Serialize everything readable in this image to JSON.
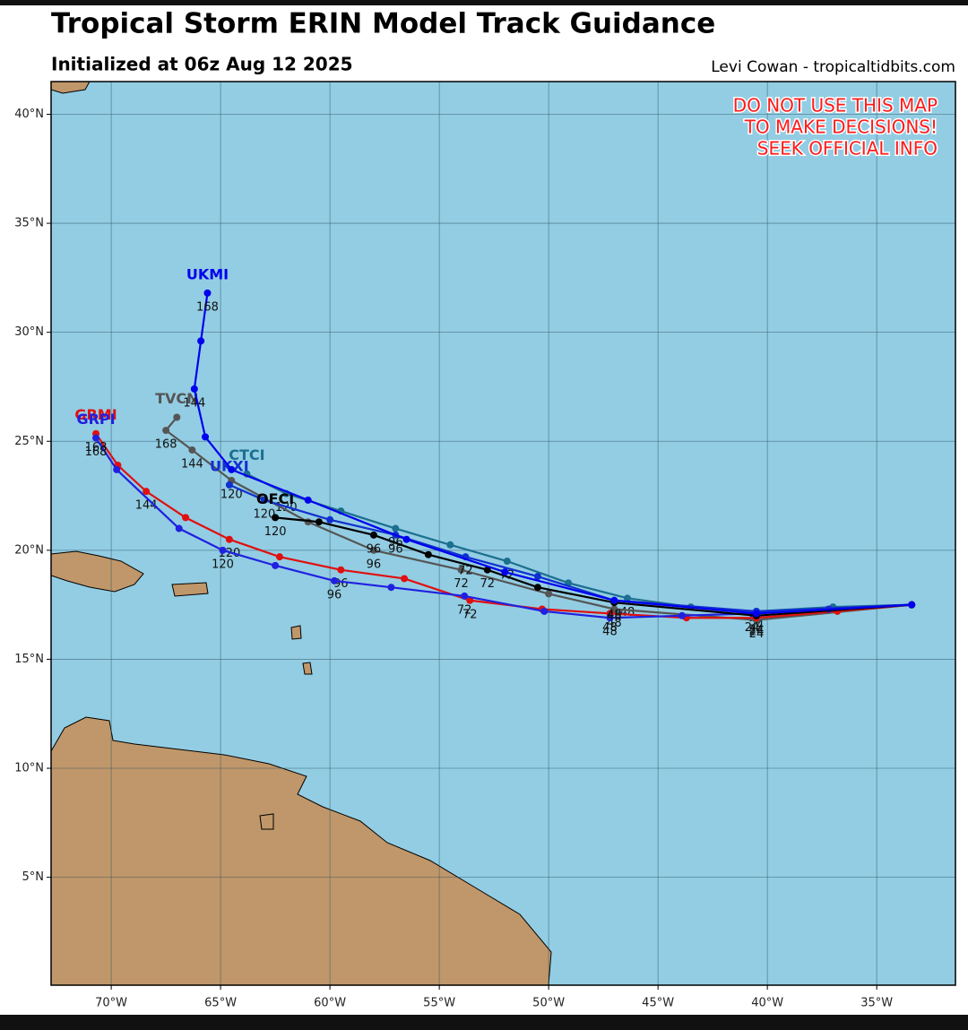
{
  "header": {
    "title": "Tropical Storm ERIN Model Track Guidance",
    "subtitle": "Initialized at 06z Aug 12 2025",
    "credit": "Levi Cowan - tropicaltidbits.com"
  },
  "warning": [
    "DO NOT USE THIS MAP",
    "TO MAKE DECISIONS!",
    "SEEK OFFICIAL INFO"
  ],
  "map": {
    "lon_range": [
      -72.75,
      -31.4
    ],
    "lat_range": [
      0.05,
      41.5
    ],
    "lon_ticks": [
      {
        "value": -70,
        "label": "70°W"
      },
      {
        "value": -65,
        "label": "65°W"
      },
      {
        "value": -60,
        "label": "60°W"
      },
      {
        "value": -55,
        "label": "55°W"
      },
      {
        "value": -50,
        "label": "50°W"
      },
      {
        "value": -45,
        "label": "45°W"
      },
      {
        "value": -40,
        "label": "40°W"
      },
      {
        "value": -35,
        "label": "35°W"
      }
    ],
    "lat_ticks": [
      {
        "value": 40,
        "label": "40°N"
      },
      {
        "value": 35,
        "label": "35°N"
      },
      {
        "value": 30,
        "label": "30°N"
      },
      {
        "value": 25,
        "label": "25°N"
      },
      {
        "value": 20,
        "label": "20°N"
      },
      {
        "value": 15,
        "label": "15°N"
      },
      {
        "value": 10,
        "label": "10°N"
      },
      {
        "value": 5,
        "label": "5°N"
      }
    ],
    "tracks": [
      {
        "name": "CTCI",
        "color": "#1b6f8f",
        "lon": [
          -33.4,
          -37.0,
          -40.5,
          -43.5,
          -46.4,
          -49.1,
          -51.9,
          -54.5,
          -57.0,
          -59.5,
          -62.0,
          -63.8
        ],
        "lat": [
          17.5,
          17.4,
          17.2,
          17.4,
          17.8,
          18.5,
          19.5,
          20.25,
          21.0,
          21.8,
          22.6,
          23.5
        ],
        "hours": [
          null,
          null,
          "24",
          null,
          "48",
          null,
          "72",
          null,
          "96",
          null,
          "120",
          null
        ]
      },
      {
        "name": "TVCN",
        "color": "#555555",
        "lon": [
          -33.4,
          -40.5,
          -47.0,
          -50.0,
          -54.0,
          -58.0,
          -61.0,
          -64.5,
          -66.3,
          -67.5,
          -67.0
        ],
        "lat": [
          17.5,
          16.8,
          17.3,
          18.0,
          19.1,
          20.0,
          21.3,
          23.2,
          24.6,
          25.5,
          26.1
        ],
        "hours": [
          null,
          "24",
          "48",
          null,
          "72",
          "96",
          null,
          "120",
          "144",
          "168",
          null
        ]
      },
      {
        "name": "GRMI",
        "color": "#e01010",
        "lon": [
          -33.4,
          -36.8,
          -40.5,
          -43.7,
          -47.2,
          -50.3,
          -53.6,
          -56.6,
          -59.5,
          -62.3,
          -64.6,
          -66.6,
          -68.4,
          -69.7,
          -70.7
        ],
        "lat": [
          17.5,
          17.2,
          16.9,
          16.9,
          17.1,
          17.3,
          17.7,
          18.7,
          19.1,
          19.7,
          20.5,
          21.5,
          22.7,
          23.9,
          25.35
        ],
        "hours": [
          null,
          null,
          "24",
          null,
          "48",
          null,
          "72",
          null,
          "96",
          null,
          "120",
          null,
          "144",
          null,
          "168"
        ]
      },
      {
        "name": "GRPI",
        "color": "#2020e0",
        "lon": [
          -33.4,
          -37.2,
          -40.7,
          -43.9,
          -47.2,
          -50.2,
          -53.85,
          -57.2,
          -59.8,
          -62.5,
          -64.9,
          -66.9,
          -69.75,
          -70.7
        ],
        "lat": [
          17.5,
          17.3,
          17.1,
          17.0,
          16.9,
          17.2,
          17.9,
          18.3,
          18.6,
          19.3,
          20.0,
          21.0,
          23.7,
          25.15
        ],
        "hours": [
          null,
          null,
          "24",
          null,
          "48",
          null,
          "72",
          null,
          "96",
          null,
          "120",
          null,
          null,
          "168"
        ]
      },
      {
        "name": "UKXI",
        "color": "#1030d0",
        "lon": [
          -33.4,
          -40.5,
          -47.0,
          -50.5,
          -53.8,
          -57.0,
          -60.0,
          -63.0,
          -64.6
        ],
        "lat": [
          17.5,
          17.2,
          17.7,
          18.8,
          19.7,
          20.7,
          21.4,
          22.3,
          23.0
        ],
        "hours": [
          null,
          null,
          "48",
          null,
          "72",
          "96",
          null,
          "120",
          null
        ]
      },
      {
        "name": "OFCI",
        "color": "#000000",
        "lon": [
          -33.4,
          -40.5,
          -47.0,
          -50.5,
          -52.8,
          -55.5,
          -58.0,
          -60.5,
          -62.5
        ],
        "lat": [
          17.5,
          17.0,
          17.6,
          18.3,
          19.1,
          19.8,
          20.7,
          21.3,
          21.5
        ],
        "hours": [
          null,
          "24",
          "48",
          null,
          "72",
          null,
          "96",
          null,
          "120"
        ]
      },
      {
        "name": "UKMI",
        "color": "#0000ee",
        "lon": [
          -33.4,
          -40.5,
          -47.0,
          -52.0,
          -56.5,
          -61.0,
          -64.5,
          -65.7,
          -66.2,
          -65.9,
          -65.6
        ],
        "lat": [
          17.5,
          17.1,
          17.7,
          19.0,
          20.5,
          22.3,
          23.7,
          25.2,
          27.4,
          29.6,
          31.8
        ],
        "hours": [
          null,
          null,
          null,
          null,
          null,
          null,
          null,
          null,
          "144",
          null,
          "168"
        ]
      }
    ]
  }
}
